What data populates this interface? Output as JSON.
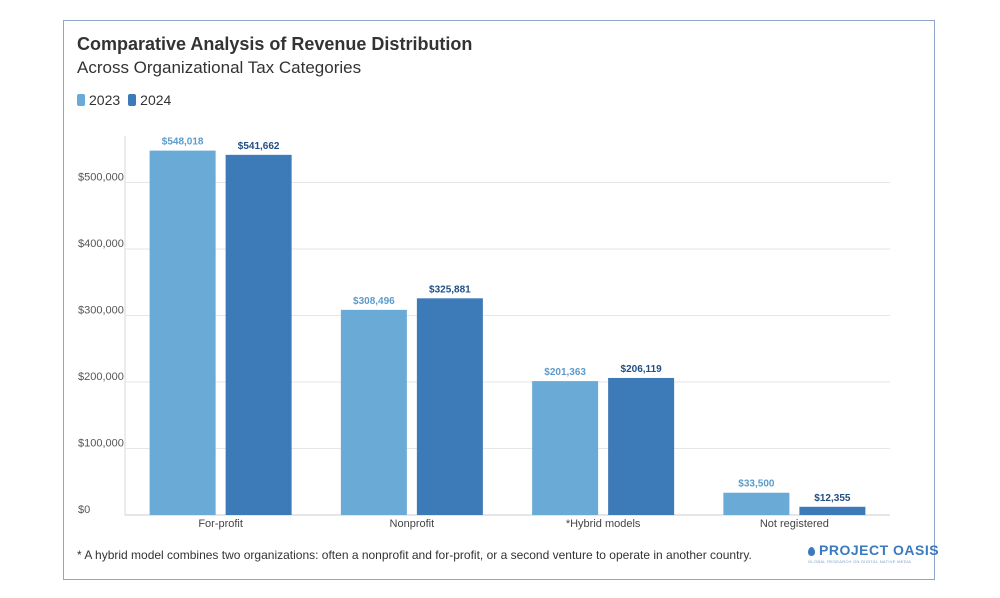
{
  "chart_data": {
    "type": "bar",
    "title": "Comparative Analysis of Revenue Distribution",
    "subtitle": "Across Organizational Tax Categories",
    "categories": [
      "For-profit",
      "Nonprofit",
      "*Hybrid models",
      "Not registered"
    ],
    "series": [
      {
        "name": "2023",
        "color": "#6aaad6",
        "label_color": "#5b9ccc",
        "values": [
          548018,
          308496,
          201363,
          33500
        ],
        "labels": [
          "$548,018",
          "$308,496",
          "$201,363",
          "$33,500"
        ]
      },
      {
        "name": "2024",
        "color": "#3d7ab8",
        "label_color": "#1f4f85",
        "values": [
          541662,
          325881,
          206119,
          12355
        ],
        "labels": [
          "$541,662",
          "$325,881",
          "$206,119",
          "$12,355"
        ]
      }
    ],
    "y_ticks": [
      0,
      100000,
      200000,
      300000,
      400000,
      500000
    ],
    "y_tick_labels": [
      "$0",
      "$100,000",
      "$200,000",
      "$300,000",
      "$400,000",
      "$500,000"
    ],
    "ylim": [
      0,
      570000
    ],
    "xlabel": "",
    "ylabel": "",
    "grid": true,
    "legend": "top-left"
  },
  "footnote": "* A hybrid model combines two organizations: often a nonprofit and for-profit, or a second venture to operate in another country.",
  "logo": {
    "name": "PROJECT OASIS",
    "tagline": "GLOBAL RESEARCH ON DIGITAL NATIVE MEDIA"
  }
}
